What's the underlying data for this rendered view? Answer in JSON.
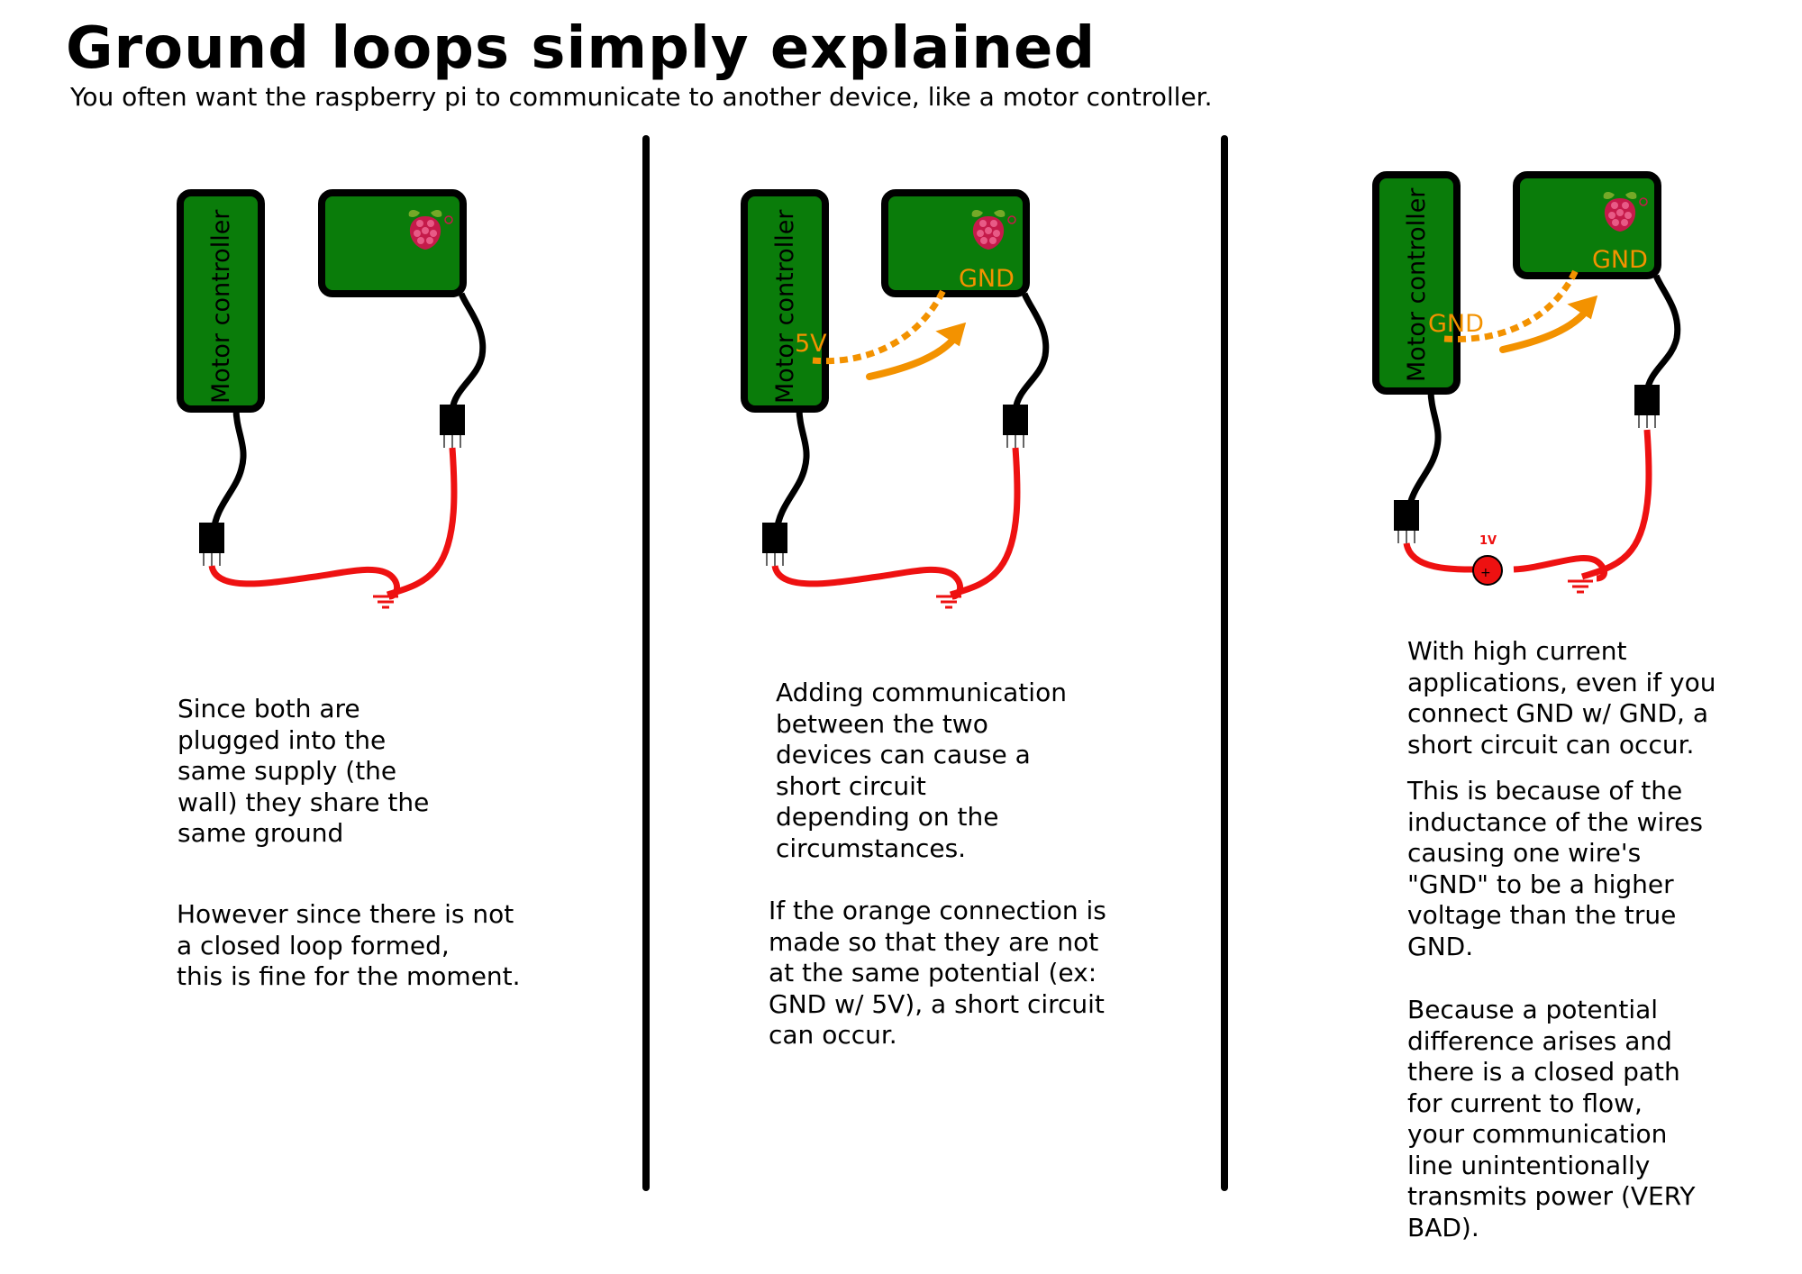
{
  "title": "Ground loops simply explained",
  "subtitle": "You often want the raspberry pi to communicate to another device, like a motor controller.",
  "colors": {
    "board_green": "#0a7c0a",
    "wire_black": "#000000",
    "wire_red": "#ee1111",
    "signal_orange": "#f39200",
    "raspberry_red": "#c51a4a",
    "leaf_green": "#75a928"
  },
  "labels": {
    "motor_controller": "Motor controller",
    "gnd": "GND",
    "five_v": "5V",
    "one_v": "1V"
  },
  "panel1": {
    "p1": [
      "Since both are",
      "plugged into the",
      "same supply (the",
      "wall) they share the",
      "same ground"
    ],
    "p2": [
      "However since there is not",
      "a closed loop formed,",
      "this is fine for the moment."
    ]
  },
  "panel2": {
    "p1": [
      "Adding communication",
      "between the two",
      "devices can cause a",
      "short circuit",
      "depending on the",
      "circumstances."
    ],
    "p2": [
      "If the orange connection is",
      "made so that they are not",
      "at the same potential (ex:",
      "GND w/ 5V), a short circuit",
      "can occur."
    ]
  },
  "panel3": {
    "p1": [
      "With high current",
      "applications, even if you",
      "connect GND w/ GND, a",
      "short circuit can occur."
    ],
    "p2": [
      "This is because of the",
      "inductance of the wires",
      "causing one wire's",
      "\"GND\" to be a higher",
      "voltage than the true",
      "GND."
    ],
    "p3": [
      "Because a potential",
      "difference arises and",
      "there is a closed path",
      "for current to flow,",
      "your communication",
      "line unintentionally",
      "transmits power (VERY",
      "BAD)."
    ]
  }
}
